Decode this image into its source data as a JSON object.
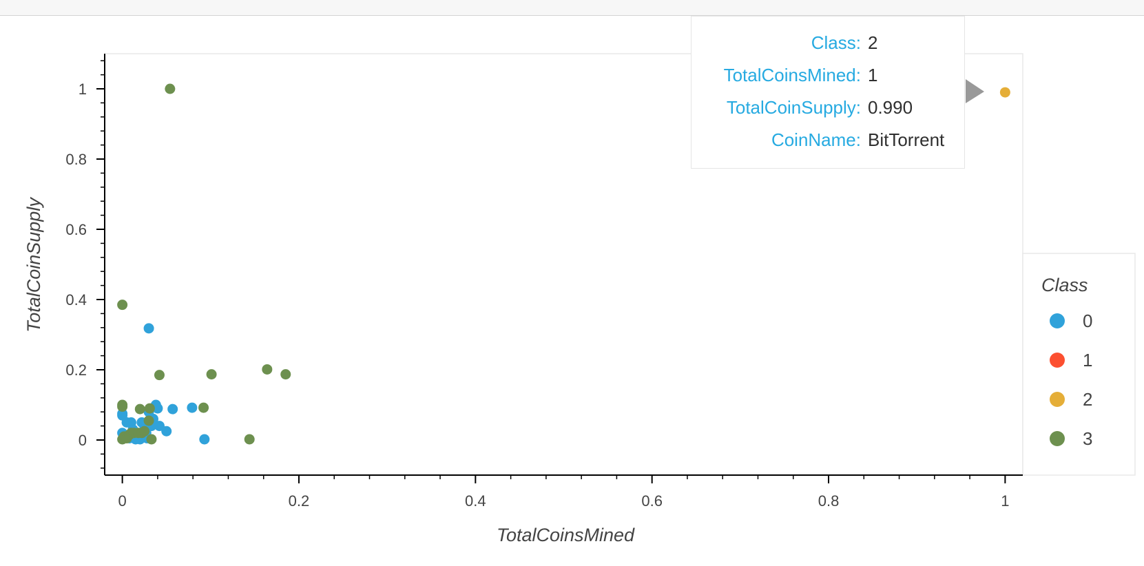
{
  "chart_data": {
    "type": "scatter",
    "xlabel": "TotalCoinsMined",
    "ylabel": "TotalCoinSupply",
    "xlim": [
      -0.02,
      1.02
    ],
    "ylim": [
      -0.1,
      1.1
    ],
    "x_ticks": [
      0,
      0.2,
      0.4,
      0.6,
      0.8,
      1
    ],
    "x_tick_labels": [
      "0",
      "0.2",
      "0.4",
      "0.6",
      "0.8",
      "1"
    ],
    "y_ticks": [
      0,
      0.2,
      0.4,
      0.6,
      0.8,
      1
    ],
    "y_tick_labels": [
      "0",
      "0.2",
      "0.4",
      "0.6",
      "0.8",
      "1"
    ],
    "grid": false,
    "legend": {
      "title": "Class",
      "position": "right"
    },
    "series": [
      {
        "name": "0",
        "color": "#30a2da",
        "points": [
          [
            0.0,
            0.075
          ],
          [
            0.0,
            0.07
          ],
          [
            0.0,
            0.02
          ],
          [
            0.002,
            0.01
          ],
          [
            0.005,
            0.05
          ],
          [
            0.008,
            0.005
          ],
          [
            0.01,
            0.05
          ],
          [
            0.012,
            0.03
          ],
          [
            0.015,
            0.002
          ],
          [
            0.018,
            0.02
          ],
          [
            0.02,
            0.002
          ],
          [
            0.022,
            0.05
          ],
          [
            0.025,
            0.03
          ],
          [
            0.027,
            0.02
          ],
          [
            0.028,
            0.005
          ],
          [
            0.03,
            0.08
          ],
          [
            0.03,
            0.318
          ],
          [
            0.033,
            0.04
          ],
          [
            0.035,
            0.06
          ],
          [
            0.038,
            0.1
          ],
          [
            0.04,
            0.09
          ],
          [
            0.042,
            0.04
          ],
          [
            0.05,
            0.025
          ],
          [
            0.057,
            0.088
          ],
          [
            0.079,
            0.092
          ],
          [
            0.093,
            0.002
          ]
        ]
      },
      {
        "name": "1",
        "color": "#fc4f30",
        "points": []
      },
      {
        "name": "2",
        "color": "#e5ae38",
        "points": [
          [
            1.0,
            0.99
          ]
        ]
      },
      {
        "name": "3",
        "color": "#6d904f",
        "points": [
          [
            0.0,
            0.385
          ],
          [
            0.0,
            0.1
          ],
          [
            0.0,
            0.095
          ],
          [
            0.0,
            0.002
          ],
          [
            0.002,
            0.01
          ],
          [
            0.005,
            0.005
          ],
          [
            0.008,
            0.015
          ],
          [
            0.01,
            0.02
          ],
          [
            0.013,
            0.02
          ],
          [
            0.018,
            0.02
          ],
          [
            0.02,
            0.088
          ],
          [
            0.022,
            0.02
          ],
          [
            0.025,
            0.025
          ],
          [
            0.03,
            0.055
          ],
          [
            0.031,
            0.09
          ],
          [
            0.033,
            0.002
          ],
          [
            0.042,
            0.185
          ],
          [
            0.054,
            1.0
          ],
          [
            0.092,
            0.092
          ],
          [
            0.101,
            0.187
          ],
          [
            0.144,
            0.002
          ],
          [
            0.164,
            0.201
          ],
          [
            0.185,
            0.187
          ]
        ]
      }
    ]
  },
  "tooltip": {
    "rows": [
      {
        "key": "Class:",
        "value": "2"
      },
      {
        "key": "TotalCoinsMined:",
        "value": "1"
      },
      {
        "key": "TotalCoinSupply:",
        "value": "0.990"
      },
      {
        "key": "CoinName:",
        "value": "BitTorrent"
      }
    ]
  }
}
